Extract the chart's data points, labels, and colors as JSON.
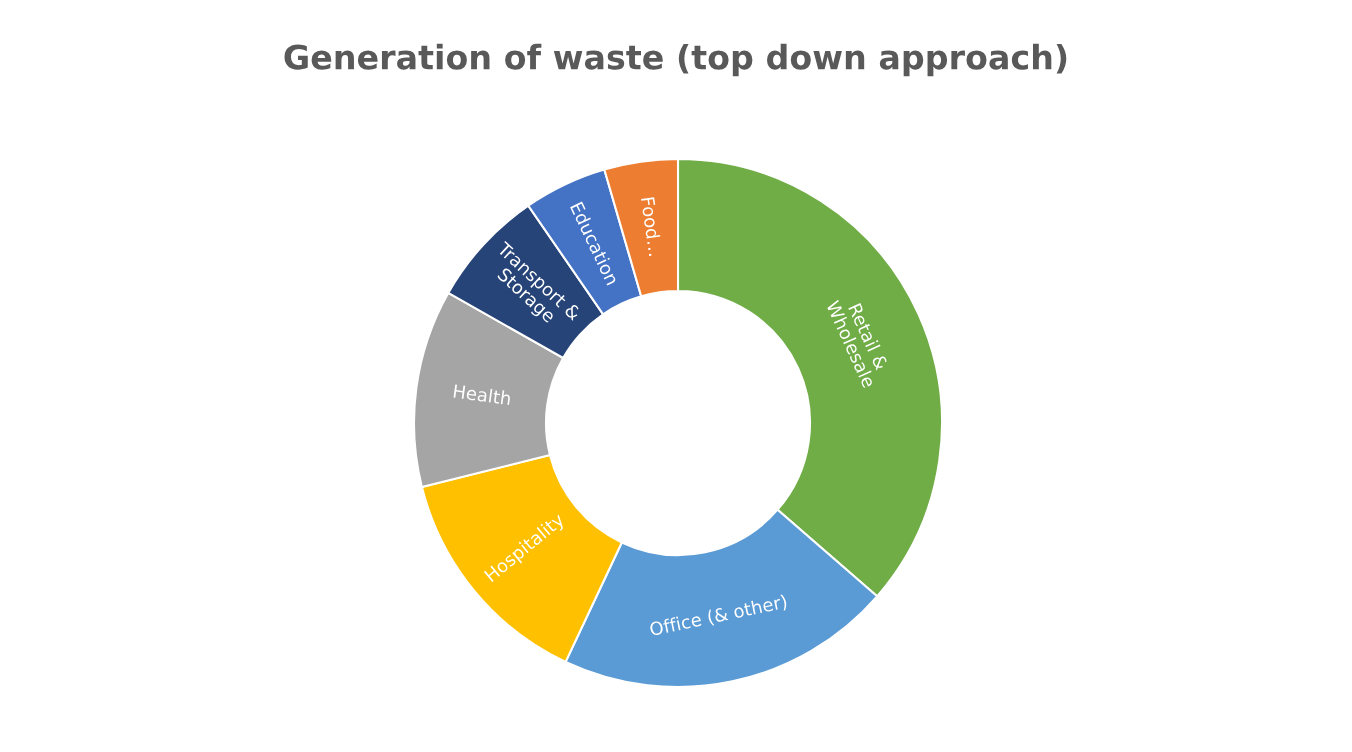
{
  "chart_data": {
    "type": "donut",
    "title": "Generation of waste (top down approach)",
    "categories": [
      "Retail & Wholesale",
      "Office (& other)",
      "Hospitality",
      "Health",
      "Transport & Storage",
      "Education",
      "Food…"
    ],
    "values": [
      36.4,
      20.6,
      14.1,
      12.1,
      7.2,
      5.1,
      4.5
    ],
    "colors": [
      "#70ad47",
      "#5b9bd5",
      "#ffc000",
      "#a5a5a5",
      "#264478",
      "#4472c4",
      "#ed7d31"
    ]
  }
}
